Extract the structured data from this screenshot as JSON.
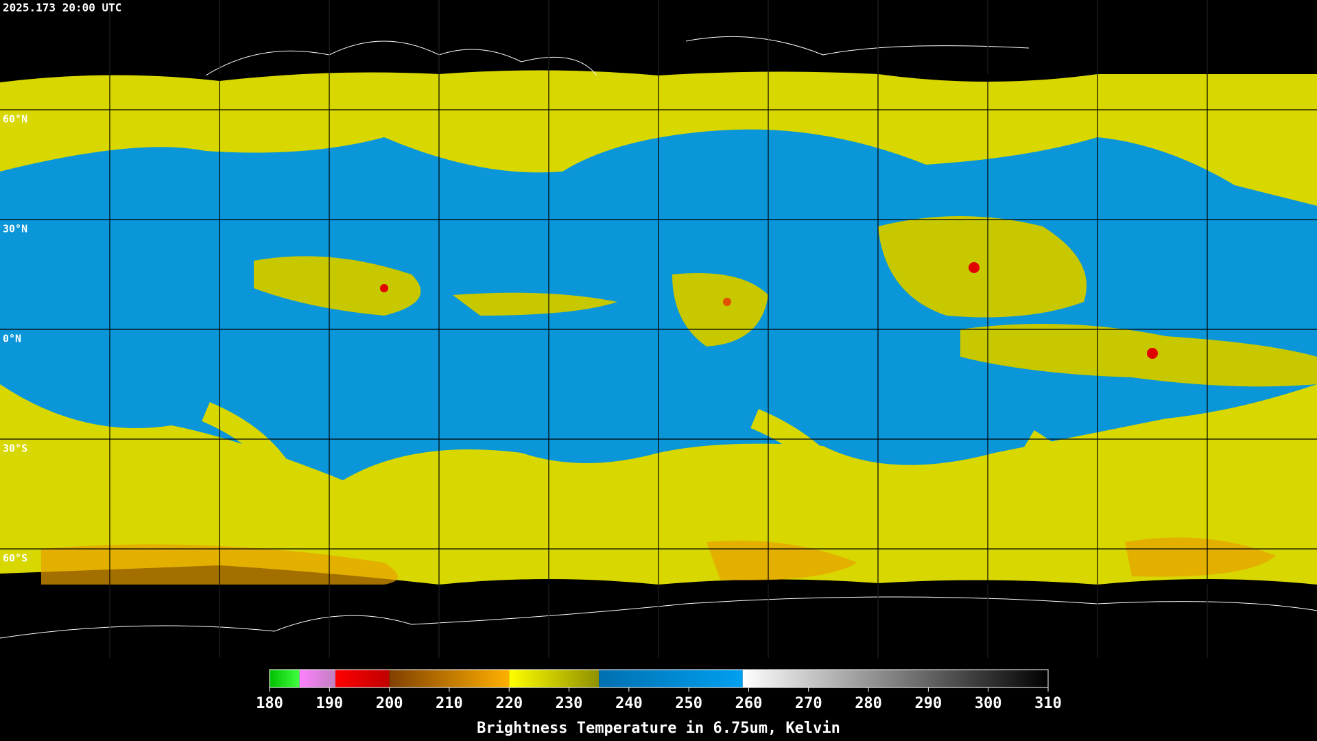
{
  "header": {
    "title": "2025.173 20:00 UTC"
  },
  "map": {
    "lat_labels": [
      "60°N",
      "30°N",
      "0°N",
      "30°S",
      "60°S"
    ]
  },
  "colorbar": {
    "range": [
      180,
      310
    ],
    "ticks": [
      180,
      190,
      200,
      210,
      220,
      230,
      240,
      250,
      260,
      270,
      280,
      290,
      300,
      310
    ],
    "segments": [
      {
        "from": 180,
        "to": 185,
        "colors": [
          "#00c000",
          "#40ff40"
        ]
      },
      {
        "from": 185,
        "to": 191,
        "colors": [
          "#ff80ff",
          "#c080c0"
        ]
      },
      {
        "from": 191,
        "to": 200,
        "colors": [
          "#ff0000",
          "#c00000"
        ]
      },
      {
        "from": 200,
        "to": 220,
        "colors": [
          "#804000",
          "#ffb000"
        ]
      },
      {
        "from": 220,
        "to": 235,
        "colors": [
          "#ffff00",
          "#909000"
        ]
      },
      {
        "from": 235,
        "to": 259,
        "colors": [
          "#0070b0",
          "#00a0f0"
        ]
      },
      {
        "from": 259,
        "to": 310,
        "colors": [
          "#ffffff",
          "#000000"
        ]
      }
    ],
    "label": "Brightness Temperature in 6.75um, Kelvin"
  }
}
